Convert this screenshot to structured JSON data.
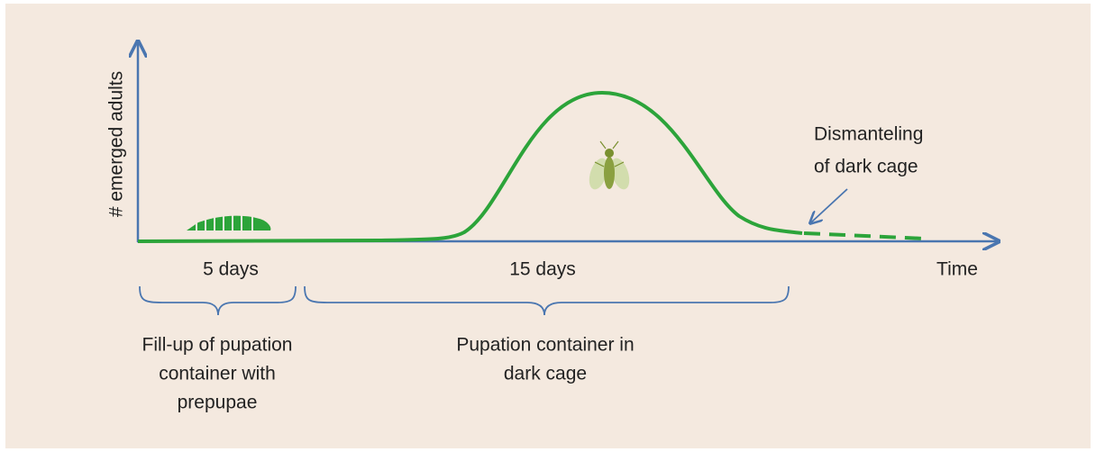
{
  "axes": {
    "y_label": "# emerged adults",
    "x_label": "Time"
  },
  "phases": [
    {
      "duration": "5 days",
      "description": [
        "Fill-up of pupation",
        "container with",
        "prepupae"
      ]
    },
    {
      "duration": "15 days",
      "description": [
        "Pupation container in",
        "dark cage"
      ]
    }
  ],
  "annotation": [
    "Dismanteling",
    "of dark cage"
  ]
}
